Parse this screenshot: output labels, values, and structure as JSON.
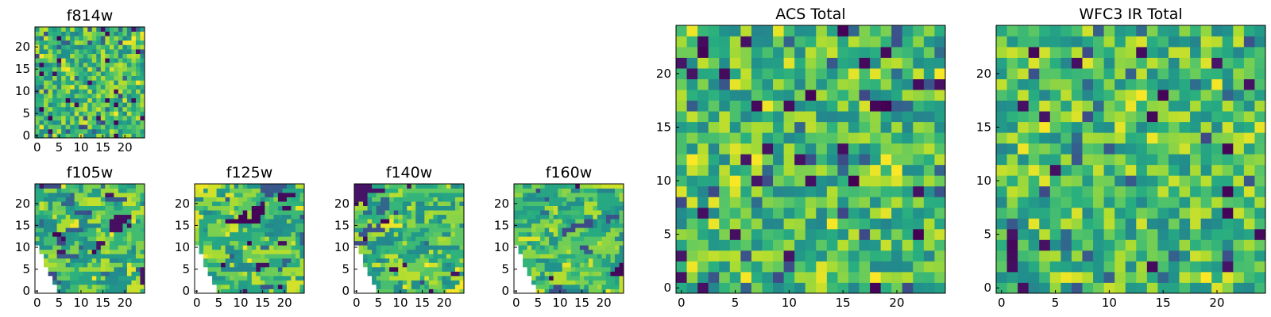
{
  "chart_data": [
    {
      "id": "f814w",
      "type": "heatmap",
      "title": "f814w",
      "grid_size": 25,
      "xticks": [
        0,
        5,
        10,
        15,
        20
      ],
      "yticks": [
        0,
        5,
        10,
        15,
        20
      ],
      "coverage": "full",
      "colormap": "viridis",
      "style": "noise",
      "seed": 11
    },
    {
      "id": "f105w",
      "type": "heatmap",
      "title": "f105w",
      "grid_size": 25,
      "xticks": [
        0,
        5,
        10,
        15,
        20
      ],
      "yticks": [
        0,
        5,
        10,
        15,
        20
      ],
      "coverage": "lower-left triangle masked",
      "colormap": "viridis",
      "style": "patchy",
      "seed": 23
    },
    {
      "id": "f125w",
      "type": "heatmap",
      "title": "f125w",
      "grid_size": 25,
      "xticks": [
        0,
        5,
        10,
        15,
        20
      ],
      "yticks": [
        0,
        5,
        10,
        15,
        20
      ],
      "coverage": "lower-left triangle masked",
      "colormap": "viridis",
      "style": "patchy",
      "seed": 37
    },
    {
      "id": "f140w",
      "type": "heatmap",
      "title": "f140w",
      "grid_size": 25,
      "xticks": [
        0,
        5,
        10,
        15,
        20
      ],
      "yticks": [
        0,
        5,
        10,
        15,
        20
      ],
      "coverage": "lower-left triangle masked",
      "colormap": "viridis",
      "style": "patchy",
      "seed": 41
    },
    {
      "id": "f160w",
      "type": "heatmap",
      "title": "f160w",
      "grid_size": 25,
      "xticks": [
        0,
        5,
        10,
        15,
        20
      ],
      "yticks": [
        0,
        5,
        10,
        15,
        20
      ],
      "coverage": "lower-left triangle masked",
      "colormap": "viridis",
      "style": "patchy",
      "seed": 53
    },
    {
      "id": "acs_total",
      "type": "heatmap",
      "title": "ACS Total",
      "grid_size": 25,
      "xticks": [
        0,
        5,
        10,
        15,
        20
      ],
      "yticks": [
        0,
        5,
        10,
        15,
        20
      ],
      "coverage": "full",
      "colormap": "viridis",
      "style": "noise",
      "seed": 67
    },
    {
      "id": "wfc3_ir_total",
      "type": "heatmap",
      "title": "WFC3 IR Total",
      "grid_size": 25,
      "xticks": [
        0,
        5,
        10,
        15,
        20
      ],
      "yticks": [
        0,
        5,
        10,
        15,
        20
      ],
      "coverage": "full",
      "colormap": "viridis",
      "style": "noise",
      "seed": 79
    }
  ]
}
